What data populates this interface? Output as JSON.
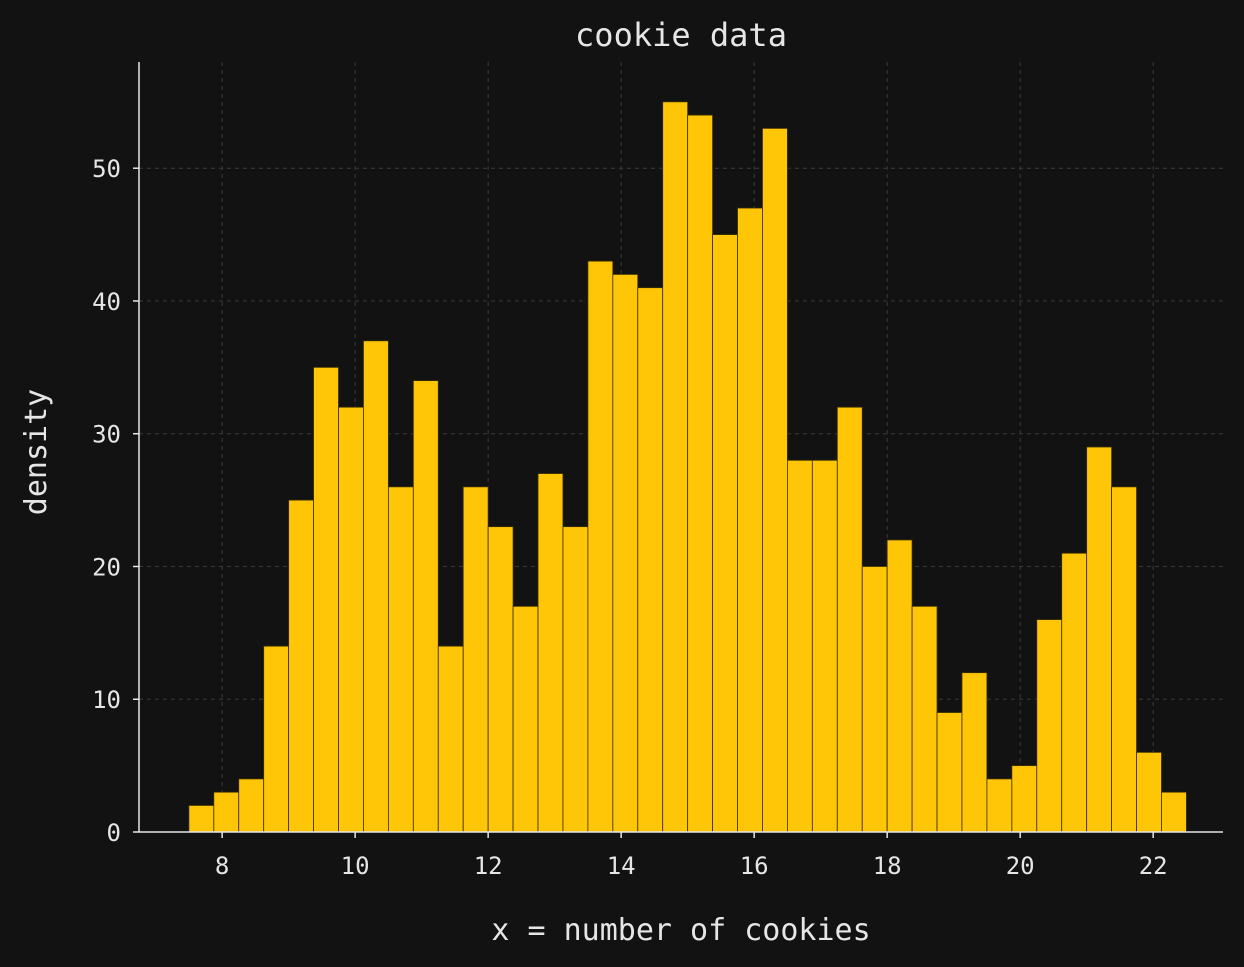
{
  "chart_data": {
    "type": "bar",
    "subtype": "histogram",
    "title": "cookie data",
    "xlabel": "x = number of cookies",
    "ylabel": "density",
    "bin_start": 7.5,
    "bin_width": 0.375,
    "values": [
      2,
      3,
      4,
      14,
      25,
      35,
      32,
      37,
      26,
      34,
      14,
      26,
      23,
      17,
      27,
      23,
      43,
      42,
      41,
      55,
      54,
      45,
      47,
      53,
      28,
      28,
      32,
      20,
      22,
      17,
      9,
      12,
      4,
      5,
      16,
      21,
      29,
      26,
      6,
      3
    ],
    "xlim": [
      6.75,
      23.05
    ],
    "ylim": [
      0,
      58
    ],
    "xticks": [
      8,
      10,
      12,
      14,
      16,
      18,
      20,
      22
    ],
    "yticks": [
      0,
      10,
      20,
      30,
      40,
      50
    ],
    "grid": true,
    "legend": "none"
  },
  "colors": {
    "background": "#121212",
    "bar_fill": "#ffc507",
    "bar_edge": "#3a3000",
    "grid": "#3a3a3a",
    "axis": "#e6e6e6",
    "text": "#e6e6e6"
  }
}
